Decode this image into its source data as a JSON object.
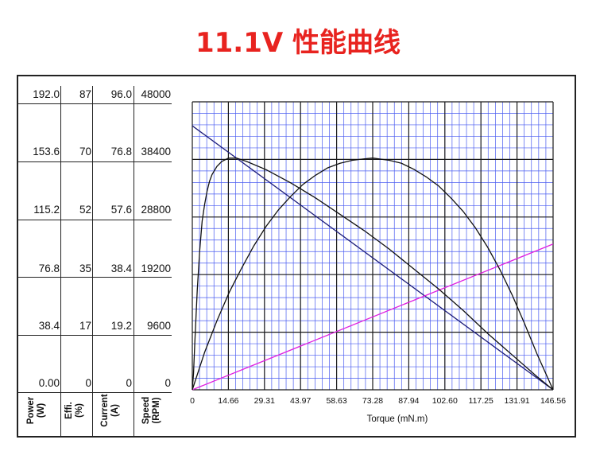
{
  "title": "11.1V 性能曲线",
  "chart_data": {
    "type": "line",
    "xlabel": "Torque (mN.m)",
    "x_ticks": [
      "0",
      "14.66",
      "29.31",
      "43.97",
      "58.63",
      "73.28",
      "87.94",
      "102.60",
      "117.25",
      "131.91",
      "146.56"
    ],
    "xlim": [
      0,
      146.56
    ],
    "y_axes": [
      {
        "name_line1": "Power",
        "name_line2": "(W)",
        "ticks": [
          "192.0",
          "153.6",
          "115.2",
          "76.8",
          "38.4",
          "0.00"
        ],
        "ylim": [
          0,
          192.0
        ]
      },
      {
        "name_line1": "Effi.",
        "name_line2": "(%)",
        "ticks": [
          "87",
          "70",
          "52",
          "35",
          "17",
          "0"
        ],
        "ylim": [
          0,
          87
        ]
      },
      {
        "name_line1": "Current",
        "name_line2": "(A)",
        "ticks": [
          "96.0",
          "76.8",
          "57.6",
          "38.4",
          "19.2",
          "0"
        ],
        "ylim": [
          0,
          96.0
        ]
      },
      {
        "name_line1": "Speed",
        "name_line2": "(RPM)",
        "ticks": [
          "48000",
          "38400",
          "28800",
          "19200",
          "9600",
          "0"
        ],
        "ylim": [
          0,
          48000
        ]
      }
    ],
    "series": [
      {
        "axis": "Speed (RPM)",
        "color": "#1c1c7a",
        "points": [
          [
            0,
            44000
          ],
          [
            146.56,
            0
          ]
        ]
      },
      {
        "axis": "Current (A)",
        "color": "#e020e0",
        "points": [
          [
            0,
            0
          ],
          [
            146.56,
            48.6
          ]
        ]
      },
      {
        "axis": "Power (W)",
        "color": "#111111",
        "points": [
          [
            0,
            0
          ],
          [
            5,
            25
          ],
          [
            10,
            46
          ],
          [
            15,
            65
          ],
          [
            20,
            81
          ],
          [
            25,
            96
          ],
          [
            30,
            109
          ],
          [
            35,
            120
          ],
          [
            40,
            129
          ],
          [
            45,
            137
          ],
          [
            50,
            143
          ],
          [
            55,
            148
          ],
          [
            60,
            151
          ],
          [
            65,
            153
          ],
          [
            70,
            154
          ],
          [
            73.28,
            154.5
          ],
          [
            80,
            153
          ],
          [
            85,
            151
          ],
          [
            90,
            147
          ],
          [
            95,
            142
          ],
          [
            100,
            136
          ],
          [
            105,
            128
          ],
          [
            110,
            119
          ],
          [
            115,
            108
          ],
          [
            120,
            95
          ],
          [
            125,
            80
          ],
          [
            130,
            63
          ],
          [
            135,
            44
          ],
          [
            140,
            24
          ],
          [
            146.56,
            0
          ]
        ]
      },
      {
        "axis": "Effi. (%)",
        "color": "#111111",
        "points": [
          [
            0,
            0
          ],
          [
            0.5,
            5
          ],
          [
            1,
            14
          ],
          [
            2,
            30
          ],
          [
            3,
            42
          ],
          [
            4,
            51
          ],
          [
            5,
            56
          ],
          [
            6,
            60
          ],
          [
            7,
            63
          ],
          [
            8,
            65
          ],
          [
            10,
            67.5
          ],
          [
            12,
            69
          ],
          [
            14.66,
            70
          ],
          [
            18,
            70
          ],
          [
            22,
            69
          ],
          [
            30,
            66.5
          ],
          [
            40,
            62.5
          ],
          [
            50,
            58
          ],
          [
            60,
            53
          ],
          [
            70,
            48
          ],
          [
            80,
            42.5
          ],
          [
            90,
            36.5
          ],
          [
            100,
            30.5
          ],
          [
            110,
            24
          ],
          [
            120,
            17
          ],
          [
            130,
            10.5
          ],
          [
            140,
            4
          ],
          [
            146.56,
            0
          ]
        ]
      }
    ],
    "grid": true
  }
}
